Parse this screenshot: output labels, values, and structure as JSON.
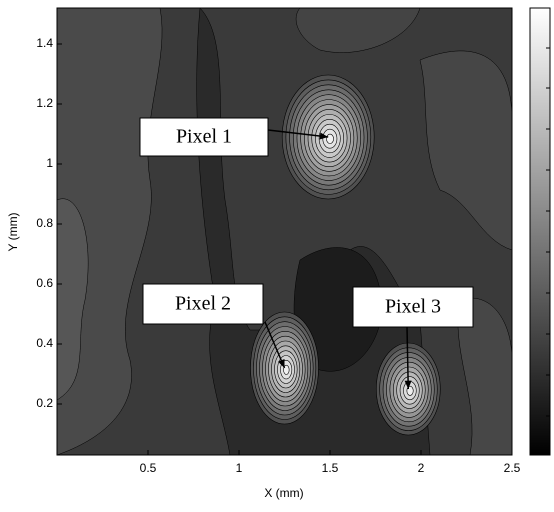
{
  "chart_data": {
    "type": "contour",
    "xlabel": "X (mm)",
    "ylabel": "Y (mm)",
    "xlim": [
      0,
      2.5
    ],
    "ylim": [
      0.03,
      1.52
    ],
    "xticks": [
      0.5,
      1,
      1.5,
      2,
      2.5
    ],
    "yticks": [
      0.2,
      0.4,
      0.6,
      0.8,
      1,
      1.2,
      1.4
    ],
    "peaks": [
      {
        "label": "Pixel 1",
        "x": 1.49,
        "y": 1.09
      },
      {
        "label": "Pixel 2",
        "x": 1.25,
        "y": 0.32
      },
      {
        "label": "Pixel 3",
        "x": 1.93,
        "y": 0.25
      }
    ]
  }
}
